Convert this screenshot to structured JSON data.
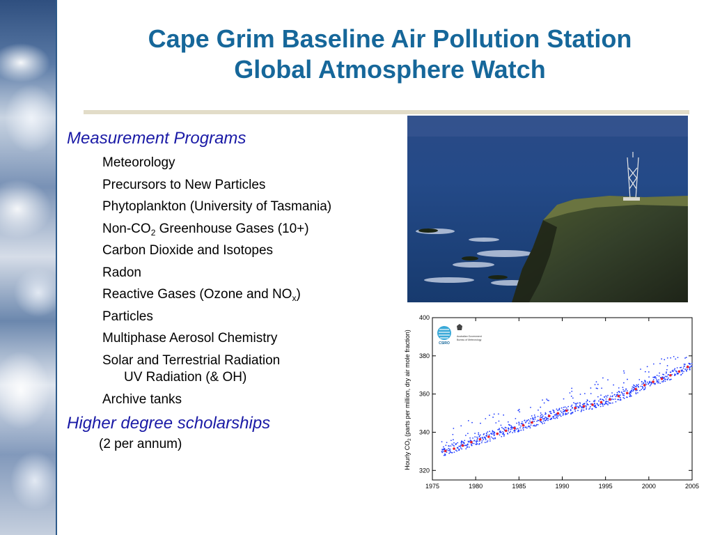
{
  "title": {
    "line1": "Cape Grim Baseline Air Pollution Station",
    "line2": "Global Atmosphere Watch"
  },
  "measurement": {
    "heading": "Measurement Programs",
    "items": [
      {
        "text": "Meteorology"
      },
      {
        "text": "Precursors to New Particles"
      },
      {
        "text": "Phytoplankton (University of Tasmania)"
      },
      {
        "pre": "Non-CO",
        "sub": "2",
        "post": " Greenhouse Gases (10+)"
      },
      {
        "text": "Carbon Dioxide and Isotopes"
      },
      {
        "text": "Radon"
      },
      {
        "pre": "Reactive Gases (Ozone and NO",
        "sub": "x",
        "post": ")"
      },
      {
        "text": "Particles"
      },
      {
        "text": "Multiphase Aerosol Chemistry"
      },
      {
        "text": "Solar and Terrestrial Radiation",
        "subline": "UV Radiation (& OH)"
      },
      {
        "text": "Archive tanks"
      }
    ]
  },
  "scholarships": {
    "heading": "Higher degree scholarships",
    "note": "(2 per annum)"
  },
  "logos": {
    "csiro": "CSIRO",
    "gov_line1": "Australian Government",
    "gov_line2": "Bureau of Meteorology"
  },
  "colors": {
    "title": "#16679a",
    "heading": "#1a1aa6",
    "hourly_points": "#1f3cff",
    "monthly_points": "#e8202a"
  },
  "chart_data": {
    "type": "scatter",
    "title": "",
    "xlabel": "",
    "ylabel_pre": "Hourly CO",
    "ylabel_sub": "2",
    "ylabel_post": " (parts per million, dry air mole fraction)",
    "xlim": [
      1975,
      2005
    ],
    "ylim": [
      315,
      400
    ],
    "x_ticks": [
      1975,
      1980,
      1985,
      1990,
      1995,
      2000,
      2005
    ],
    "y_ticks": [
      320,
      340,
      360,
      380,
      400
    ],
    "series": [
      {
        "kind": "hourly",
        "color": "#1f3cff",
        "x": [
          1976.5,
          1977.5,
          1978.5,
          1979.5,
          1980.5,
          1981.5,
          1982.5,
          1983.5,
          1984.5,
          1985.5,
          1986.5,
          1987.5,
          1988.5,
          1989.5,
          1990.5,
          1991.5,
          1992.5,
          1993.5,
          1994.5,
          1995.5,
          1996.5,
          1997.5,
          1998.5,
          1999.5,
          2000.5,
          2001.5,
          2002.5,
          2003.5,
          2004.5
        ],
        "y": [
          330.2,
          331.4,
          333.0,
          334.8,
          336.3,
          337.6,
          339.2,
          340.8,
          342.1,
          343.6,
          345.1,
          346.6,
          348.5,
          349.9,
          351.3,
          352.7,
          353.6,
          354.4,
          355.7,
          357.2,
          358.9,
          360.5,
          362.6,
          364.7,
          366.4,
          368.0,
          369.8,
          371.8,
          374.2
        ],
        "spread": 5
      },
      {
        "kind": "monthly",
        "color": "#e8202a",
        "x": [
          1976.5,
          1977.5,
          1978.5,
          1979.5,
          1980.5,
          1981.5,
          1982.5,
          1983.5,
          1984.5,
          1985.5,
          1986.5,
          1987.5,
          1988.5,
          1989.5,
          1990.5,
          1991.5,
          1992.5,
          1993.5,
          1994.5,
          1995.5,
          1996.5,
          1997.5,
          1998.5,
          1999.5,
          2000.5,
          2001.5,
          2002.5,
          2003.5,
          2004.5
        ],
        "y": [
          330.2,
          331.4,
          333.0,
          334.8,
          336.3,
          337.6,
          339.2,
          340.8,
          342.1,
          343.6,
          345.1,
          346.6,
          348.5,
          349.9,
          351.3,
          352.7,
          353.6,
          354.4,
          355.7,
          357.2,
          358.9,
          360.5,
          362.6,
          364.7,
          366.4,
          368.0,
          369.8,
          371.8,
          374.2
        ]
      }
    ]
  }
}
